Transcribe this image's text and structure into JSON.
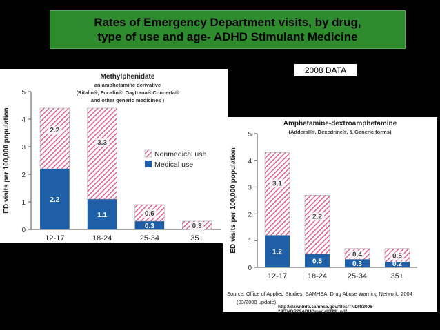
{
  "slide": {
    "title_line1": "Rates of Emergency Department visits, by drug,",
    "title_line2": "type of use and age- ADHD Stimulant Medicine",
    "year_tag": "2008 DATA",
    "source_line1": "Source: Office of Applied Studies, SAMHSA, Drug Abuse Warning Network, 2004",
    "source_line2": "(03/2008 update)",
    "source_url": "http://dawninfo.samhsa.gov/files/TNDR/2006-29/TNDR29ADHDmedsHTML.pdf"
  },
  "colors": {
    "title_bg": "#2e8b2e",
    "medical": "#1f5fa8",
    "nonmedical": "#e0457a"
  },
  "chart_data": [
    {
      "type": "bar",
      "title": "Methylphenidate",
      "subtitle_lines": [
        "an amphetamine derivative",
        "(Ritalin®, Focalin®, Daytrana®,Concerta®",
        "and other generic medicines )"
      ],
      "ylabel": "ED visits per 100,000 population",
      "ylim": [
        0,
        5
      ],
      "yticks": [
        "0",
        "1",
        "2",
        "3",
        "4",
        "5"
      ],
      "categories": [
        "12-17",
        "18-24",
        "25-34",
        "35+"
      ],
      "series": [
        {
          "name": "Medical use",
          "values": [
            2.2,
            1.1,
            0.3,
            0
          ],
          "labels": [
            "2.2",
            "1.1",
            "0.3",
            ""
          ]
        },
        {
          "name": "Nonmedical use",
          "values": [
            2.2,
            3.3,
            0.6,
            0.3
          ],
          "labels": [
            "2.2",
            "3.3",
            "0.6",
            "0.3"
          ]
        }
      ],
      "legend": "right",
      "stacked": true
    },
    {
      "type": "bar",
      "title": "Amphetamine-dextroamphetamine",
      "subtitle_lines": [
        "(Adderall®, Dexedrine®, & Generic forms)"
      ],
      "ylabel": "ED visits per 100,000 population",
      "ylim": [
        0,
        5
      ],
      "yticks": [
        "0",
        "1",
        "2",
        "3",
        "4",
        "5"
      ],
      "categories": [
        "12-17",
        "18-24",
        "25-34",
        "35+"
      ],
      "series": [
        {
          "name": "Medical use",
          "values": [
            1.2,
            0.5,
            0.3,
            0.2
          ],
          "labels": [
            "1.2",
            "0.5",
            "0.3",
            "0.2"
          ]
        },
        {
          "name": "Nonmedical use",
          "values": [
            3.1,
            2.2,
            0.4,
            0.5
          ],
          "labels": [
            "3.1",
            "2.2",
            "0.4",
            "0.5"
          ]
        }
      ],
      "stacked": true
    }
  ]
}
